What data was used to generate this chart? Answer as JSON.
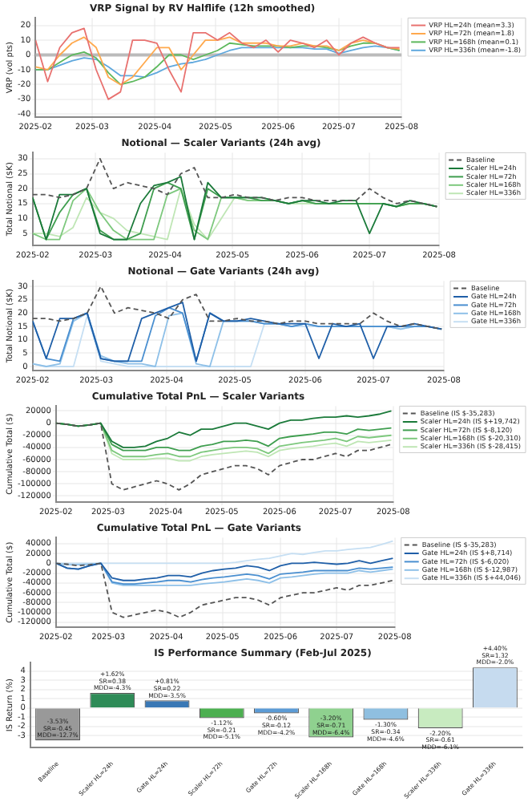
{
  "chart_data": [
    {
      "type": "line",
      "title": "VRP Signal by RV Halflife (12h smoothed)",
      "ylabel": "VRP (vol pts)",
      "grid": true,
      "legend": "right",
      "x": [
        "2025-02-01",
        "2025-02-07",
        "2025-02-13",
        "2025-02-19",
        "2025-02-25",
        "2025-03-03",
        "2025-03-09",
        "2025-03-15",
        "2025-03-21",
        "2025-03-27",
        "2025-04-02",
        "2025-04-08",
        "2025-04-14",
        "2025-04-20",
        "2025-04-26",
        "2025-05-02",
        "2025-05-08",
        "2025-05-14",
        "2025-05-20",
        "2025-05-26",
        "2025-06-01",
        "2025-06-07",
        "2025-06-13",
        "2025-06-19",
        "2025-06-25",
        "2025-07-01",
        "2025-07-07",
        "2025-07-13",
        "2025-07-19",
        "2025-07-25",
        "2025-07-31"
      ],
      "xlim": [
        "2025-02",
        "2025-08"
      ],
      "xticks": [
        "2025-02",
        "2025-03",
        "2025-04",
        "2025-05",
        "2025-06",
        "2025-07",
        "2025-08"
      ],
      "ylim": [
        -42,
        25
      ],
      "yticks": [
        -40,
        -30,
        -20,
        -10,
        0,
        10,
        20
      ],
      "ref_lines": [
        {
          "axis": "y",
          "value": 0,
          "color": "#bbbbbb"
        }
      ],
      "series": [
        {
          "name": "VRP HL=24h (mean=3.3)",
          "color": "#e8716f",
          "values": [
            10,
            -18,
            5,
            15,
            18,
            -10,
            -30,
            -25,
            10,
            10,
            8,
            -10,
            -25,
            15,
            15,
            10,
            15,
            8,
            5,
            10,
            2,
            10,
            8,
            5,
            10,
            0,
            8,
            12,
            8,
            5,
            5
          ]
        },
        {
          "name": "VRP HL=72h (mean=1.8)",
          "color": "#ffa94d",
          "values": [
            -8,
            -10,
            0,
            8,
            12,
            5,
            -15,
            -20,
            -15,
            -5,
            5,
            5,
            -10,
            0,
            10,
            10,
            12,
            8,
            8,
            8,
            6,
            6,
            8,
            6,
            6,
            3,
            8,
            10,
            8,
            5,
            4
          ]
        },
        {
          "name": "VRP HL=168h (mean=0.1)",
          "color": "#5cb85c",
          "values": [
            -10,
            -10,
            -5,
            0,
            2,
            -2,
            -12,
            -20,
            -18,
            -15,
            -8,
            0,
            0,
            -3,
            0,
            3,
            8,
            7,
            6,
            6,
            6,
            5,
            6,
            6,
            5,
            3,
            6,
            8,
            8,
            5,
            3
          ]
        },
        {
          "name": "VRP HL=336h (mean=-1.8)",
          "color": "#5fa8dd",
          "values": [
            -10,
            -10,
            -7,
            -4,
            -2,
            -3,
            -8,
            -14,
            -14,
            -15,
            -12,
            -8,
            -6,
            -5,
            -3,
            0,
            3,
            5,
            5,
            5,
            5,
            5,
            5,
            4,
            4,
            1,
            3,
            5,
            6,
            5,
            3
          ]
        }
      ]
    },
    {
      "type": "line",
      "title": "Notional — Scaler Variants (24h avg)",
      "ylabel": "Total Notional ($K)",
      "grid": true,
      "legend": "right",
      "x": [
        "2025-02-01",
        "2025-02-07",
        "2025-02-13",
        "2025-02-19",
        "2025-02-25",
        "2025-03-03",
        "2025-03-09",
        "2025-03-15",
        "2025-03-21",
        "2025-03-27",
        "2025-04-02",
        "2025-04-08",
        "2025-04-14",
        "2025-04-20",
        "2025-04-26",
        "2025-05-02",
        "2025-05-08",
        "2025-05-14",
        "2025-05-20",
        "2025-05-26",
        "2025-06-01",
        "2025-06-07",
        "2025-06-13",
        "2025-06-19",
        "2025-06-25",
        "2025-07-01",
        "2025-07-07",
        "2025-07-13",
        "2025-07-19",
        "2025-07-25",
        "2025-07-31"
      ],
      "xlim": [
        "2025-02",
        "2025-08"
      ],
      "xticks": [
        "2025-02",
        "2025-03",
        "2025-04",
        "2025-05",
        "2025-06",
        "2025-07",
        "2025-08"
      ],
      "ylim": [
        1,
        32
      ],
      "yticks": [
        5,
        10,
        15,
        20,
        25,
        30
      ],
      "series": [
        {
          "name": "Baseline",
          "color": "#555555",
          "line_style": "dashed",
          "values": [
            18,
            18,
            17,
            18,
            20,
            30,
            20,
            22,
            21,
            20,
            18,
            25,
            27,
            17,
            17,
            18,
            17,
            17,
            16,
            17,
            17,
            16,
            16,
            16,
            16,
            20,
            17,
            15,
            16,
            15,
            14
          ]
        },
        {
          "name": "Scaler HL=24h",
          "color": "#1b7a3a",
          "values": [
            17,
            3,
            18,
            18,
            20,
            5,
            3,
            3,
            15,
            21,
            22,
            24,
            3,
            22,
            17,
            17,
            17,
            17,
            16,
            15,
            16,
            16,
            15,
            16,
            16,
            5,
            15,
            14,
            16,
            15,
            14
          ]
        },
        {
          "name": "Scaler HL=72h",
          "color": "#3f9e4f",
          "values": [
            17,
            3,
            12,
            18,
            20,
            6,
            3,
            3,
            5,
            20,
            22,
            20,
            3,
            20,
            17,
            17,
            17,
            16,
            16,
            15,
            16,
            15,
            15,
            15,
            15,
            15,
            15,
            14,
            15,
            15,
            14
          ]
        },
        {
          "name": "Scaler HL=168h",
          "color": "#7dc87d",
          "values": [
            5,
            3,
            3,
            16,
            20,
            12,
            6,
            3,
            3,
            3,
            18,
            20,
            6,
            3,
            17,
            17,
            16,
            16,
            16,
            15,
            16,
            15,
            15,
            15,
            15,
            15,
            15,
            14,
            15,
            15,
            14
          ]
        },
        {
          "name": "Scaler HL=336h",
          "color": "#bfe6b5",
          "values": [
            5,
            5,
            4,
            7,
            17,
            12,
            10,
            6,
            5,
            4,
            3,
            20,
            8,
            3,
            10,
            17,
            16,
            16,
            16,
            15,
            15,
            15,
            15,
            15,
            15,
            15,
            15,
            14,
            15,
            15,
            14
          ]
        }
      ]
    },
    {
      "type": "line",
      "title": "Notional — Gate Variants (24h avg)",
      "ylabel": "Total Notional ($K)",
      "grid": true,
      "legend": "right",
      "x": [
        "2025-02-01",
        "2025-02-07",
        "2025-02-13",
        "2025-02-19",
        "2025-02-25",
        "2025-03-03",
        "2025-03-09",
        "2025-03-15",
        "2025-03-21",
        "2025-03-27",
        "2025-04-02",
        "2025-04-08",
        "2025-04-14",
        "2025-04-20",
        "2025-04-26",
        "2025-05-02",
        "2025-05-08",
        "2025-05-14",
        "2025-05-20",
        "2025-05-26",
        "2025-06-01",
        "2025-06-07",
        "2025-06-13",
        "2025-06-19",
        "2025-06-25",
        "2025-07-01",
        "2025-07-07",
        "2025-07-13",
        "2025-07-19",
        "2025-07-25",
        "2025-07-31"
      ],
      "xlim": [
        "2025-02",
        "2025-08"
      ],
      "xticks": [
        "2025-02",
        "2025-03",
        "2025-04",
        "2025-05",
        "2025-06",
        "2025-07",
        "2025-08"
      ],
      "ylim": [
        -1.5,
        32
      ],
      "yticks": [
        0,
        5,
        10,
        15,
        20,
        25,
        30
      ],
      "series": [
        {
          "name": "Baseline",
          "color": "#555555",
          "line_style": "dashed",
          "values": [
            18,
            18,
            17,
            18,
            20,
            30,
            20,
            22,
            21,
            20,
            18,
            25,
            27,
            17,
            17,
            18,
            17,
            17,
            16,
            17,
            17,
            16,
            16,
            16,
            16,
            20,
            17,
            15,
            16,
            15,
            14
          ]
        },
        {
          "name": "Gate HL=24h",
          "color": "#1f5fa8",
          "values": [
            17,
            3,
            18,
            18,
            20,
            3,
            2,
            2,
            18,
            20,
            22,
            24,
            2,
            20,
            17,
            17,
            18,
            17,
            16,
            16,
            16,
            3,
            16,
            15,
            16,
            3,
            15,
            15,
            16,
            15,
            14
          ]
        },
        {
          "name": "Gate HL=72h",
          "color": "#4a8fd0",
          "values": [
            17,
            3,
            2,
            18,
            20,
            3,
            2,
            2,
            2,
            19,
            22,
            20,
            2,
            20,
            17,
            17,
            17,
            16,
            16,
            15,
            16,
            15,
            15,
            15,
            15,
            15,
            15,
            15,
            15,
            15,
            14
          ]
        },
        {
          "name": "Gate HL=168h",
          "color": "#8ec0e8",
          "values": [
            1,
            0,
            1,
            17,
            20,
            4,
            2,
            1,
            1,
            0,
            19,
            20,
            1,
            0,
            17,
            17,
            17,
            16,
            16,
            15,
            16,
            15,
            15,
            15,
            15,
            15,
            15,
            14,
            15,
            15,
            14
          ]
        },
        {
          "name": "Gate HL=336h",
          "color": "#c6dff3",
          "values": [
            1,
            0,
            0,
            0,
            19,
            2,
            1,
            0,
            0,
            0,
            0,
            0,
            0,
            0,
            0,
            0,
            0,
            16,
            16,
            15,
            15,
            15,
            15,
            15,
            15,
            15,
            15,
            14,
            15,
            15,
            14
          ]
        }
      ]
    },
    {
      "type": "line",
      "title": "Cumulative Total PnL — Scaler Variants",
      "ylabel": "Cumulative Total ($)",
      "grid": true,
      "legend": "right",
      "x": [
        "2025-02-01",
        "2025-02-07",
        "2025-02-13",
        "2025-02-19",
        "2025-02-25",
        "2025-03-03",
        "2025-03-09",
        "2025-03-15",
        "2025-03-21",
        "2025-03-27",
        "2025-04-02",
        "2025-04-08",
        "2025-04-14",
        "2025-04-20",
        "2025-04-26",
        "2025-05-02",
        "2025-05-08",
        "2025-05-14",
        "2025-05-20",
        "2025-05-26",
        "2025-06-01",
        "2025-06-07",
        "2025-06-13",
        "2025-06-19",
        "2025-06-25",
        "2025-07-01",
        "2025-07-07",
        "2025-07-13",
        "2025-07-19",
        "2025-07-25",
        "2025-07-31"
      ],
      "xlim": [
        "2025-02",
        "2025-08"
      ],
      "xticks": [
        "2025-02",
        "2025-03",
        "2025-04",
        "2025-05",
        "2025-06",
        "2025-07",
        "2025-08"
      ],
      "ylim": [
        -130000,
        28000
      ],
      "yticks": [
        -120000,
        -100000,
        -80000,
        -60000,
        -40000,
        -20000,
        0,
        20000
      ],
      "series": [
        {
          "name": "Baseline (IS $-35,283)",
          "color": "#555555",
          "line_style": "dashed",
          "values": [
            0,
            -2000,
            -5000,
            -3000,
            0,
            -100000,
            -110000,
            -105000,
            -100000,
            -95000,
            -100000,
            -110000,
            -100000,
            -85000,
            -80000,
            -75000,
            -70000,
            -70000,
            -75000,
            -85000,
            -70000,
            -65000,
            -60000,
            -60000,
            -55000,
            -50000,
            -55000,
            -45000,
            -45000,
            -40000,
            -35000
          ]
        },
        {
          "name": "Scaler HL=24h (IS $+19,742)",
          "color": "#1b7a3a",
          "values": [
            0,
            -2000,
            -5000,
            -3000,
            0,
            -30000,
            -40000,
            -40000,
            -38000,
            -30000,
            -25000,
            -15000,
            -20000,
            -10000,
            -10000,
            -5000,
            0,
            0,
            -5000,
            -10000,
            0,
            5000,
            5000,
            8000,
            10000,
            10000,
            12000,
            10000,
            12000,
            15000,
            20000
          ]
        },
        {
          "name": "Scaler HL=72h (IS $-8,120)",
          "color": "#3f9e4f",
          "values": [
            0,
            -2000,
            -5000,
            -3000,
            0,
            -35000,
            -45000,
            -45000,
            -45000,
            -40000,
            -40000,
            -45000,
            -45000,
            -38000,
            -35000,
            -30000,
            -30000,
            -28000,
            -30000,
            -38000,
            -25000,
            -22000,
            -20000,
            -18000,
            -15000,
            -15000,
            -18000,
            -10000,
            -12000,
            -10000,
            -8000
          ]
        },
        {
          "name": "Scaler HL=168h (IS $-20,310)",
          "color": "#7dc87d",
          "values": [
            0,
            -2000,
            -5000,
            -3000,
            0,
            -45000,
            -55000,
            -55000,
            -55000,
            -52000,
            -50000,
            -55000,
            -55000,
            -48000,
            -45000,
            -42000,
            -40000,
            -40000,
            -42000,
            -50000,
            -38000,
            -35000,
            -32000,
            -30000,
            -28000,
            -25000,
            -30000,
            -22000,
            -24000,
            -22000,
            -20000
          ]
        },
        {
          "name": "Scaler HL=336h (IS $-28,415)",
          "color": "#bfe6b5",
          "values": [
            0,
            -2000,
            -5000,
            -3000,
            0,
            -50000,
            -60000,
            -60000,
            -60000,
            -58000,
            -58000,
            -62000,
            -62000,
            -55000,
            -52000,
            -50000,
            -48000,
            -46000,
            -48000,
            -55000,
            -45000,
            -42000,
            -40000,
            -38000,
            -35000,
            -33000,
            -38000,
            -30000,
            -32000,
            -30000,
            -28000
          ]
        }
      ]
    },
    {
      "type": "line",
      "title": "Cumulative Total PnL — Gate Variants",
      "ylabel": "Cumulative Total ($)",
      "grid": true,
      "legend": "right",
      "x": [
        "2025-02-01",
        "2025-02-07",
        "2025-02-13",
        "2025-02-19",
        "2025-02-25",
        "2025-03-03",
        "2025-03-09",
        "2025-03-15",
        "2025-03-21",
        "2025-03-27",
        "2025-04-02",
        "2025-04-08",
        "2025-04-14",
        "2025-04-20",
        "2025-04-26",
        "2025-05-02",
        "2025-05-08",
        "2025-05-14",
        "2025-05-20",
        "2025-05-26",
        "2025-06-01",
        "2025-06-07",
        "2025-06-13",
        "2025-06-19",
        "2025-06-25",
        "2025-07-01",
        "2025-07-07",
        "2025-07-13",
        "2025-07-19",
        "2025-07-25",
        "2025-07-31"
      ],
      "xlim": [
        "2025-02",
        "2025-08"
      ],
      "xticks": [
        "2025-02",
        "2025-03",
        "2025-04",
        "2025-05",
        "2025-06",
        "2025-07",
        "2025-08"
      ],
      "ylim": [
        -130000,
        52000
      ],
      "yticks": [
        -120000,
        -100000,
        -80000,
        -60000,
        -40000,
        -20000,
        0,
        20000,
        40000
      ],
      "series": [
        {
          "name": "Baseline (IS $-35,283)",
          "color": "#555555",
          "line_style": "dashed",
          "values": [
            0,
            -2000,
            -5000,
            -3000,
            0,
            -100000,
            -110000,
            -105000,
            -100000,
            -95000,
            -100000,
            -110000,
            -100000,
            -85000,
            -80000,
            -75000,
            -70000,
            -70000,
            -75000,
            -85000,
            -70000,
            -65000,
            -60000,
            -60000,
            -55000,
            -50000,
            -55000,
            -45000,
            -45000,
            -40000,
            -35000
          ]
        },
        {
          "name": "Gate HL=24h (IS $+8,714)",
          "color": "#1f5fa8",
          "values": [
            0,
            -10000,
            -12000,
            -5000,
            0,
            -30000,
            -35000,
            -35000,
            -32000,
            -30000,
            -25000,
            -25000,
            -28000,
            -20000,
            -15000,
            -12000,
            -10000,
            -5000,
            -8000,
            -15000,
            -5000,
            0,
            0,
            2000,
            0,
            -2000,
            0,
            5000,
            0,
            5000,
            10000
          ]
        },
        {
          "name": "Gate HL=72h (IS $-6,020)",
          "color": "#4a8fd0",
          "values": [
            0,
            -10000,
            -12000,
            -5000,
            0,
            -38000,
            -42000,
            -42000,
            -40000,
            -38000,
            -35000,
            -35000,
            -38000,
            -33000,
            -30000,
            -28000,
            -25000,
            -22000,
            -25000,
            -32000,
            -22000,
            -20000,
            -18000,
            -15000,
            -15000,
            -15000,
            -15000,
            -10000,
            -12000,
            -10000,
            -8000
          ]
        },
        {
          "name": "Gate HL=168h (IS $-12,987)",
          "color": "#8ec0e8",
          "values": [
            0,
            -3000,
            -3000,
            -2000,
            0,
            -40000,
            -45000,
            -45000,
            -45000,
            -45000,
            -45000,
            -45000,
            -45000,
            -42000,
            -40000,
            -38000,
            -35000,
            -32000,
            -35000,
            -40000,
            -30000,
            -28000,
            -25000,
            -22000,
            -20000,
            -20000,
            -20000,
            -15000,
            -18000,
            -15000,
            -12000
          ]
        },
        {
          "name": "Gate HL=336h (IS $+44,046)",
          "color": "#c6dff3",
          "values": [
            0,
            0,
            0,
            0,
            0,
            0,
            0,
            0,
            0,
            0,
            0,
            0,
            0,
            0,
            0,
            0,
            2000,
            5000,
            8000,
            10000,
            15000,
            20000,
            18000,
            22000,
            25000,
            25000,
            28000,
            30000,
            32000,
            38000,
            45000
          ]
        }
      ]
    },
    {
      "type": "bar",
      "title": "IS Performance Summary (Feb-Jul 2025)",
      "ylabel": "IS Return (%)",
      "grid": "y",
      "categories": [
        "Baseline",
        "Scaler HL=24h",
        "Gate HL=24h",
        "Scaler HL=72h",
        "Gate HL=72h",
        "Scaler HL=168h",
        "Gate HL=168h",
        "Scaler HL=336h",
        "Gate HL=336h"
      ],
      "values": [
        -3.53,
        1.62,
        0.81,
        -1.12,
        -0.6,
        -3.2,
        -1.3,
        -2.2,
        4.4
      ],
      "colors": [
        "#999999",
        "#2e8b57",
        "#3a78b5",
        "#4caf50",
        "#5b9bd5",
        "#8fd18f",
        "#8fbfe0",
        "#c8ebc0",
        "#c6dbef"
      ],
      "value_labels": [
        "-3.53%\nSR=-0.45\nMDD=-12.7%",
        "+1.62%\nSR=0.38\nMDD=-4.3%",
        "+0.81%\nSR=0.22\nMDD=-3.5%",
        "-1.12%\nSR=-0.21\nMDD=-5.1%",
        "-0.60%\nSR=-0.12\nMDD=-4.2%",
        "-3.20%\nSR=-0.71\nMDD=-6.4%",
        "-1.30%\nSR=-0.34\nMDD=-4.6%",
        "-2.20%\nSR=-0.61\nMDD=-6.1%",
        "+4.40%\nSR=1.32\nMDD=-2.0%"
      ],
      "ylim": [
        -4.3,
        4.9
      ],
      "yticks": [
        -3,
        -2,
        -1,
        0,
        1,
        2,
        3,
        4
      ]
    }
  ]
}
